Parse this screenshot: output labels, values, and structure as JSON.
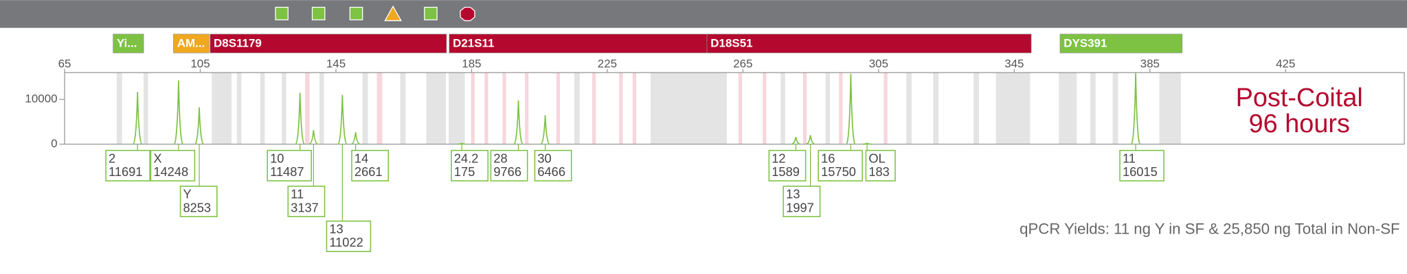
{
  "chart_data": {
    "type": "electropherogram",
    "xlim": [
      65,
      460
    ],
    "ylim": [
      0,
      16000
    ],
    "xticks": [
      65,
      105,
      145,
      185,
      225,
      265,
      305,
      345,
      385,
      425
    ],
    "yticks": [
      0,
      10000
    ],
    "color": "#7dc242",
    "annotation": [
      "Post-Coital",
      "96 hours"
    ],
    "annotation_color": "#b5082e",
    "note": "qPCR Yields: 11 ng Y in SF & 25,850 ng Total in Non-SF",
    "loci": [
      {
        "name": "Yi...",
        "color": "#7dc242",
        "start": 79.3,
        "end": 88.3
      },
      {
        "name": "AM...",
        "color": "#f0a820",
        "start": 97.1,
        "end": 107.6
      },
      {
        "name": "D8S1179",
        "color": "#b5082e",
        "start": 107.9,
        "end": 177.6
      },
      {
        "name": "D21S11",
        "color": "#b5082e",
        "start": 178.4,
        "end": 254.4
      },
      {
        "name": "D18S51",
        "color": "#b5082e",
        "start": 254.4,
        "end": 350
      },
      {
        "name": "DYS391",
        "color": "#7dc242",
        "start": 358.5,
        "end": 394.5
      }
    ],
    "categories": [
      "2",
      "X",
      "Y",
      "10",
      "11",
      "13",
      "14",
      "24.2",
      "28",
      "30",
      "12",
      "13",
      "16",
      "OL",
      "11"
    ],
    "x": [
      86.5,
      98.6,
      104.7,
      134.4,
      138.4,
      146.9,
      150.8,
      182.1,
      198.8,
      206.7,
      280.6,
      284.9,
      296.8,
      301.6,
      380.8
    ],
    "values": [
      11691,
      14248,
      8253,
      11487,
      3137,
      11022,
      2661,
      175,
      9766,
      6466,
      1589,
      1997,
      15750,
      183,
      16015
    ]
  }
}
